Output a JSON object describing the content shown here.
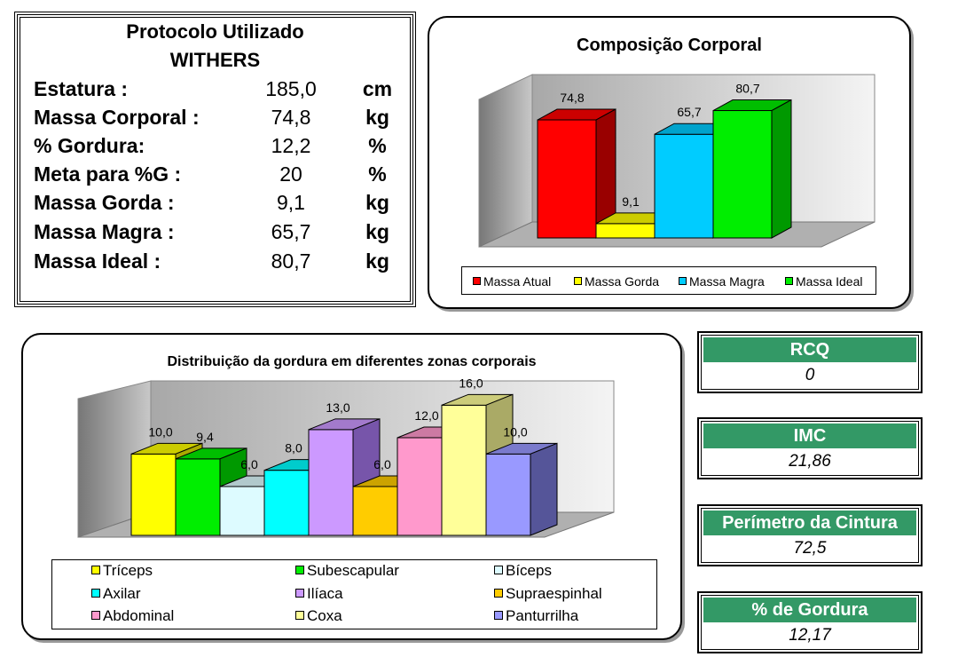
{
  "protocol": {
    "title": "Protocolo Utilizado",
    "subtitle": "WITHERS",
    "rows": [
      {
        "label": "Estatura :",
        "value": "185,0",
        "unit": "cm"
      },
      {
        "label": "Massa Corporal :",
        "value": "74,8",
        "unit": "kg"
      },
      {
        "label": "% Gordura:",
        "value": "12,2",
        "unit": "%"
      },
      {
        "label": "Meta para %G :",
        "value": "20",
        "unit": "%"
      },
      {
        "label": "Massa Gorda :",
        "value": "9,1",
        "unit": "kg"
      },
      {
        "label": "Massa Magra :",
        "value": "65,7",
        "unit": "kg"
      },
      {
        "label": "Massa Ideal :",
        "value": "80,7",
        "unit": "kg"
      }
    ]
  },
  "metrics": [
    {
      "label": "RCQ",
      "value": "0"
    },
    {
      "label": "IMC",
      "value": "21,86"
    },
    {
      "label": "Perímetro da Cintura",
      "value": "72,5"
    },
    {
      "label": "% de Gordura",
      "value": "12,17"
    }
  ],
  "chart_data": [
    {
      "type": "bar",
      "title": "Composição Corporal",
      "categories": [
        "Massa Atual",
        "Massa Gorda",
        "Massa Magra",
        "Massa Ideal"
      ],
      "values": [
        74.8,
        9.1,
        65.7,
        80.7
      ],
      "labels": [
        "74,8",
        "9,1",
        "65,7",
        "80,7"
      ],
      "colors": [
        "#ff0000",
        "#ffff00",
        "#00ccff",
        "#00ee00"
      ],
      "side_colors": [
        "#990000",
        "#aaaa00",
        "#0088aa",
        "#009900"
      ],
      "ylim": [
        0,
        90
      ],
      "grid": false,
      "legend": "bottom"
    },
    {
      "type": "bar",
      "title": "Distribuição da gordura em diferentes zonas corporais",
      "categories": [
        "Tríceps",
        "Subescapular",
        "Bíceps",
        "Axilar",
        "Ilíaca",
        "Supraespinhal",
        "Abdominal",
        "Coxa",
        "Panturrilha"
      ],
      "values": [
        10.0,
        9.4,
        6.0,
        8.0,
        13.0,
        6.0,
        12.0,
        16.0,
        10.0
      ],
      "labels": [
        "10,0",
        "9,4",
        "6,0",
        "8,0",
        "13,0",
        "6,0",
        "12,0",
        "16,0",
        "10,0"
      ],
      "colors": [
        "#ffff00",
        "#00ee00",
        "#ddfbff",
        "#00ffff",
        "#cc99ff",
        "#ffcc00",
        "#ff99cc",
        "#ffff99",
        "#9999ff"
      ],
      "side_colors": [
        "#aaaa00",
        "#009900",
        "#88aaaa",
        "#009999",
        "#7755aa",
        "#aa8800",
        "#aa6688",
        "#aaaa66",
        "#555599"
      ],
      "ylim": [
        0,
        18
      ],
      "grid": false,
      "legend": "bottom"
    }
  ]
}
